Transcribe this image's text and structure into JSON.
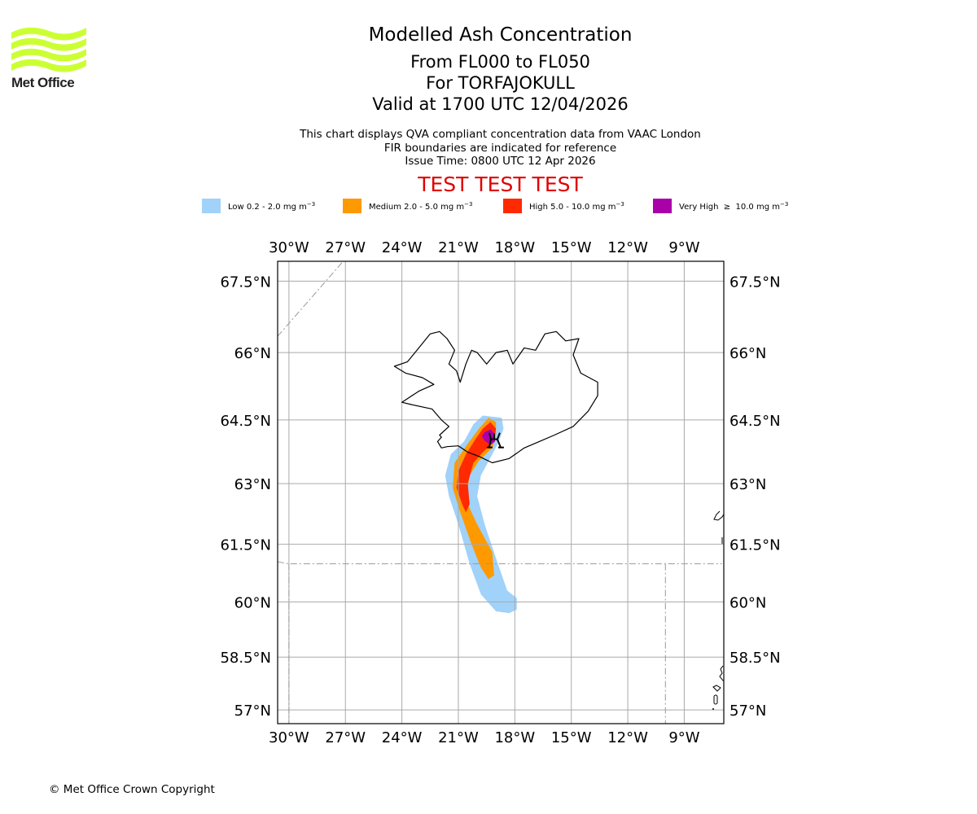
{
  "logo": {
    "name": "Met Office",
    "brand_color": "#ccff33"
  },
  "header": {
    "title": "Modelled Ash Concentration",
    "level_range": "From FL000 to FL050",
    "volcano_line": "For TORFAJOKULL",
    "valid_line": "Valid at 1700 UTC 12/04/2026",
    "description": "This chart displays QVA compliant concentration data from VAAC London",
    "fir_note": "FIR boundaries are indicated for reference",
    "issue_time": "Issue Time: 0800 UTC 12 Apr 2026",
    "test_banner": "TEST TEST TEST",
    "test_color": "#e00000"
  },
  "legend": [
    {
      "label": "Low 0.2 - 2.0 mg m",
      "exp": "−3",
      "color": "#a0d2fa"
    },
    {
      "label": "Medium 2.0 - 5.0 mg m",
      "exp": "−3",
      "color": "#ff9900"
    },
    {
      "label": "High 5.0 - 10.0 mg m",
      "exp": "−3",
      "color": "#ff2a00"
    },
    {
      "label": "Very High  ≥  10.0 mg m",
      "exp": "−3",
      "color": "#aa00aa"
    }
  ],
  "footer": {
    "copyright": "© Met Office Crown Copyright"
  },
  "chart_data": {
    "type": "heatmap",
    "title": "Modelled Ash Concentration",
    "subtitle": "From FL000 to FL050 — For TORFAJOKULL — Valid at 1700 UTC 12/04/2026",
    "volcano": {
      "name": "TORFAJOKULL",
      "lon": -19.1,
      "lat": 63.9
    },
    "lon_range": [
      -30.6,
      -6.9
    ],
    "lat_range": [
      56.6,
      67.9
    ],
    "lon_ticks": [
      -30,
      -27,
      -24,
      -21,
      -18,
      -15,
      -12,
      -9
    ],
    "lon_tick_labels": [
      "30°W",
      "27°W",
      "24°W",
      "21°W",
      "18°W",
      "15°W",
      "12°W",
      "9°W"
    ],
    "lat_ticks": [
      67.5,
      66,
      64.5,
      63,
      61.5,
      60,
      58.5,
      57
    ],
    "lat_tick_labels": [
      "67.5°N",
      "66°N",
      "64.5°N",
      "63°N",
      "61.5°N",
      "60°N",
      "58.5°N",
      "57°N"
    ],
    "grid": true,
    "legend_placement": "top",
    "levels": [
      {
        "name": "Low",
        "min": 0.2,
        "max": 2.0,
        "unit": "mg m-3",
        "color": "#a0d2fa",
        "polygon": [
          [
            -19.7,
            64.6
          ],
          [
            -18.7,
            64.55
          ],
          [
            -18.6,
            64.3
          ],
          [
            -18.9,
            63.95
          ],
          [
            -19.2,
            63.7
          ],
          [
            -19.8,
            63.2
          ],
          [
            -20.0,
            62.7
          ],
          [
            -19.6,
            62.0
          ],
          [
            -18.9,
            61.0
          ],
          [
            -18.4,
            60.3
          ],
          [
            -17.9,
            60.1
          ],
          [
            -17.9,
            59.8
          ],
          [
            -18.3,
            59.7
          ],
          [
            -19.0,
            59.75
          ],
          [
            -19.8,
            60.2
          ],
          [
            -20.4,
            61.0
          ],
          [
            -21.0,
            62.0
          ],
          [
            -21.5,
            62.7
          ],
          [
            -21.7,
            63.2
          ],
          [
            -21.4,
            63.7
          ],
          [
            -20.7,
            64.0
          ],
          [
            -20.2,
            64.4
          ]
        ]
      },
      {
        "name": "Medium",
        "min": 2.0,
        "max": 5.0,
        "unit": "mg m-3",
        "color": "#ff9900",
        "polygon": [
          [
            -19.4,
            64.55
          ],
          [
            -19.0,
            64.45
          ],
          [
            -19.0,
            64.1
          ],
          [
            -19.2,
            63.85
          ],
          [
            -19.9,
            63.55
          ],
          [
            -20.4,
            63.2
          ],
          [
            -20.6,
            62.6
          ],
          [
            -20.0,
            62.0
          ],
          [
            -19.2,
            61.3
          ],
          [
            -19.1,
            60.7
          ],
          [
            -19.4,
            60.6
          ],
          [
            -19.8,
            60.9
          ],
          [
            -20.3,
            61.5
          ],
          [
            -20.9,
            62.3
          ],
          [
            -21.3,
            62.9
          ],
          [
            -21.2,
            63.5
          ],
          [
            -20.5,
            63.95
          ],
          [
            -19.9,
            64.3
          ]
        ]
      },
      {
        "name": "High",
        "min": 5.0,
        "max": 10.0,
        "unit": "mg m-3",
        "color": "#ff2a00",
        "polygon": [
          [
            -19.3,
            64.45
          ],
          [
            -19.0,
            64.3
          ],
          [
            -19.1,
            64.0
          ],
          [
            -19.7,
            63.75
          ],
          [
            -20.2,
            63.5
          ],
          [
            -20.5,
            63.0
          ],
          [
            -20.4,
            62.5
          ],
          [
            -20.6,
            62.3
          ],
          [
            -20.8,
            62.5
          ],
          [
            -21.1,
            62.9
          ],
          [
            -21.0,
            63.3
          ],
          [
            -20.6,
            63.7
          ],
          [
            -20.1,
            64.05
          ],
          [
            -19.7,
            64.3
          ]
        ]
      },
      {
        "name": "Very High",
        "min": 10.0,
        "max": null,
        "unit": "mg m-3",
        "color": "#aa00aa",
        "polygon": [
          [
            -19.3,
            64.28
          ],
          [
            -19.1,
            64.2
          ],
          [
            -19.05,
            64.0
          ],
          [
            -19.3,
            63.92
          ],
          [
            -19.6,
            64.02
          ],
          [
            -19.75,
            64.12
          ],
          [
            -19.6,
            64.22
          ]
        ]
      }
    ],
    "coastlines": [
      {
        "name": "Iceland",
        "points": [
          [
            -21.9,
            63.85
          ],
          [
            -22.1,
            64.0
          ],
          [
            -21.9,
            64.1
          ],
          [
            -22.0,
            64.15
          ],
          [
            -21.5,
            64.35
          ],
          [
            -21.9,
            64.5
          ],
          [
            -22.4,
            64.75
          ],
          [
            -23.5,
            64.85
          ],
          [
            -24.0,
            64.9
          ],
          [
            -23.1,
            65.15
          ],
          [
            -22.3,
            65.3
          ],
          [
            -22.9,
            65.45
          ],
          [
            -23.8,
            65.55
          ],
          [
            -24.4,
            65.7
          ],
          [
            -23.7,
            65.8
          ],
          [
            -23.2,
            66.05
          ],
          [
            -22.8,
            66.25
          ],
          [
            -22.5,
            66.4
          ],
          [
            -22.0,
            66.45
          ],
          [
            -21.6,
            66.3
          ],
          [
            -21.2,
            66.05
          ],
          [
            -21.5,
            65.75
          ],
          [
            -21.1,
            65.6
          ],
          [
            -20.9,
            65.35
          ],
          [
            -20.6,
            65.75
          ],
          [
            -20.3,
            66.05
          ],
          [
            -20.0,
            66.0
          ],
          [
            -19.5,
            65.75
          ],
          [
            -19.0,
            66.0
          ],
          [
            -18.4,
            66.05
          ],
          [
            -18.1,
            65.75
          ],
          [
            -17.5,
            66.1
          ],
          [
            -16.9,
            66.05
          ],
          [
            -16.4,
            66.4
          ],
          [
            -15.8,
            66.45
          ],
          [
            -15.3,
            66.25
          ],
          [
            -14.6,
            66.3
          ],
          [
            -14.9,
            65.95
          ],
          [
            -14.5,
            65.55
          ],
          [
            -13.6,
            65.35
          ],
          [
            -13.6,
            65.05
          ],
          [
            -14.1,
            64.7
          ],
          [
            -14.9,
            64.35
          ],
          [
            -15.9,
            64.15
          ],
          [
            -16.7,
            64.0
          ],
          [
            -17.5,
            63.85
          ],
          [
            -18.3,
            63.6
          ],
          [
            -19.2,
            63.5
          ],
          [
            -19.9,
            63.65
          ],
          [
            -20.5,
            63.75
          ],
          [
            -21.0,
            63.9
          ],
          [
            -21.6,
            63.88
          ],
          [
            -21.9,
            63.85
          ]
        ]
      }
    ],
    "fir_boundaries": [
      {
        "points": [
          [
            -30.6,
            66.35
          ],
          [
            -27.0,
            67.95
          ]
        ]
      },
      {
        "points": [
          [
            -30.6,
            61.05
          ],
          [
            -30.0,
            61.0
          ],
          [
            -7.0,
            61.0
          ]
        ]
      },
      {
        "points": [
          [
            -30.0,
            61.0
          ],
          [
            -30.0,
            56.6
          ]
        ]
      },
      {
        "points": [
          [
            -10.0,
            61.0
          ],
          [
            -10.0,
            56.6
          ]
        ]
      }
    ]
  }
}
